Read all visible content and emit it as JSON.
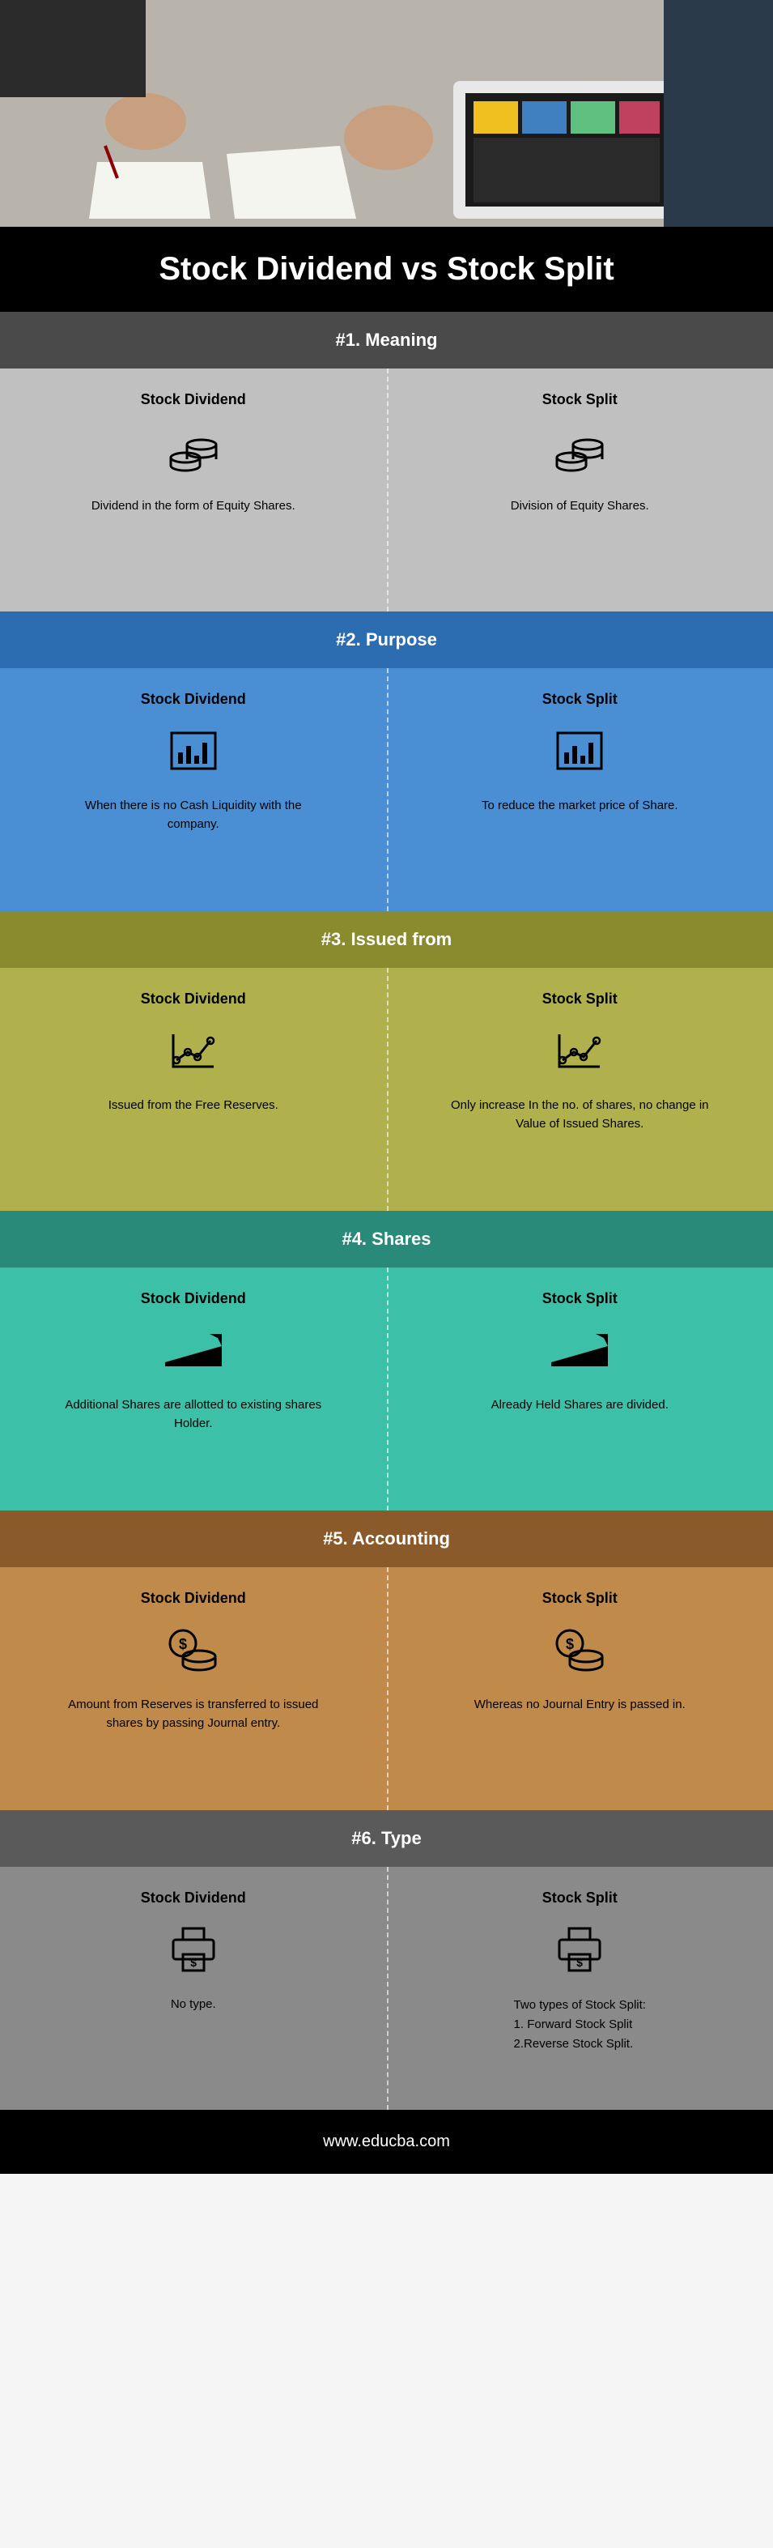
{
  "hero": {
    "bg_gradient": [
      "#8a8a8a",
      "#6b6b6b"
    ]
  },
  "title": "Stock Dividend vs Stock Split",
  "title_bar": {
    "bg": "#000000",
    "color": "#ffffff",
    "fontSize": 40
  },
  "sections": [
    {
      "id": 1,
      "header": "#1. Meaning",
      "header_bg": "#4a4a4a",
      "body_bg": "#c0c0c0",
      "icon": "coins",
      "left": {
        "title": "Stock Dividend",
        "desc": "Dividend in the form of Equity Shares."
      },
      "right": {
        "title": "Stock Split",
        "desc": "Division of Equity Shares."
      }
    },
    {
      "id": 2,
      "header": "#2. Purpose",
      "header_bg": "#2c6cb0",
      "body_bg": "#4a8fd4",
      "icon": "barchart",
      "left": {
        "title": "Stock Dividend",
        "desc": "When there is no Cash Liquidity with the company."
      },
      "right": {
        "title": "Stock Split",
        "desc": "To reduce the market price of Share."
      }
    },
    {
      "id": 3,
      "header": "#3. Issued from",
      "header_bg": "#8a8a2e",
      "body_bg": "#b0b04c",
      "icon": "lineup",
      "left": {
        "title": "Stock Dividend",
        "desc": "Issued from the Free Reserves."
      },
      "right": {
        "title": "Stock Split",
        "desc": "Only increase In the no. of shares, no change in Value of Issued Shares."
      }
    },
    {
      "id": 4,
      "header": "#4. Shares",
      "header_bg": "#2a8a7a",
      "body_bg": "#3dc0a8",
      "icon": "trend",
      "left": {
        "title": "Stock Dividend",
        "desc": "Additional Shares are allotted to existing shares Holder."
      },
      "right": {
        "title": "Stock Split",
        "desc": "Already Held Shares are divided."
      }
    },
    {
      "id": 5,
      "header": "#5. Accounting",
      "header_bg": "#8a5a2a",
      "body_bg": "#c08a4a",
      "icon": "dollarcoins",
      "left": {
        "title": "Stock Dividend",
        "desc": "Amount from Reserves is transferred to issued shares by passing Journal entry."
      },
      "right": {
        "title": "Stock Split",
        "desc": "Whereas no Journal Entry is passed in."
      }
    },
    {
      "id": 6,
      "header": "#6. Type",
      "header_bg": "#5a5a5a",
      "body_bg": "#8a8a8a",
      "icon": "printer",
      "left": {
        "title": "Stock Dividend",
        "desc": "No type."
      },
      "right": {
        "title": "Stock Split",
        "desc_list": [
          "Two types of Stock Split:",
          "1. Forward Stock Split",
          "2.Reverse Stock Split."
        ]
      }
    }
  ],
  "footer": {
    "text": "www.educba.com",
    "bg": "#000000",
    "color": "#ffffff"
  },
  "icon_stroke": "#000000",
  "icon_fill": "#000000",
  "divider_color": "rgba(255,255,255,0.6)"
}
